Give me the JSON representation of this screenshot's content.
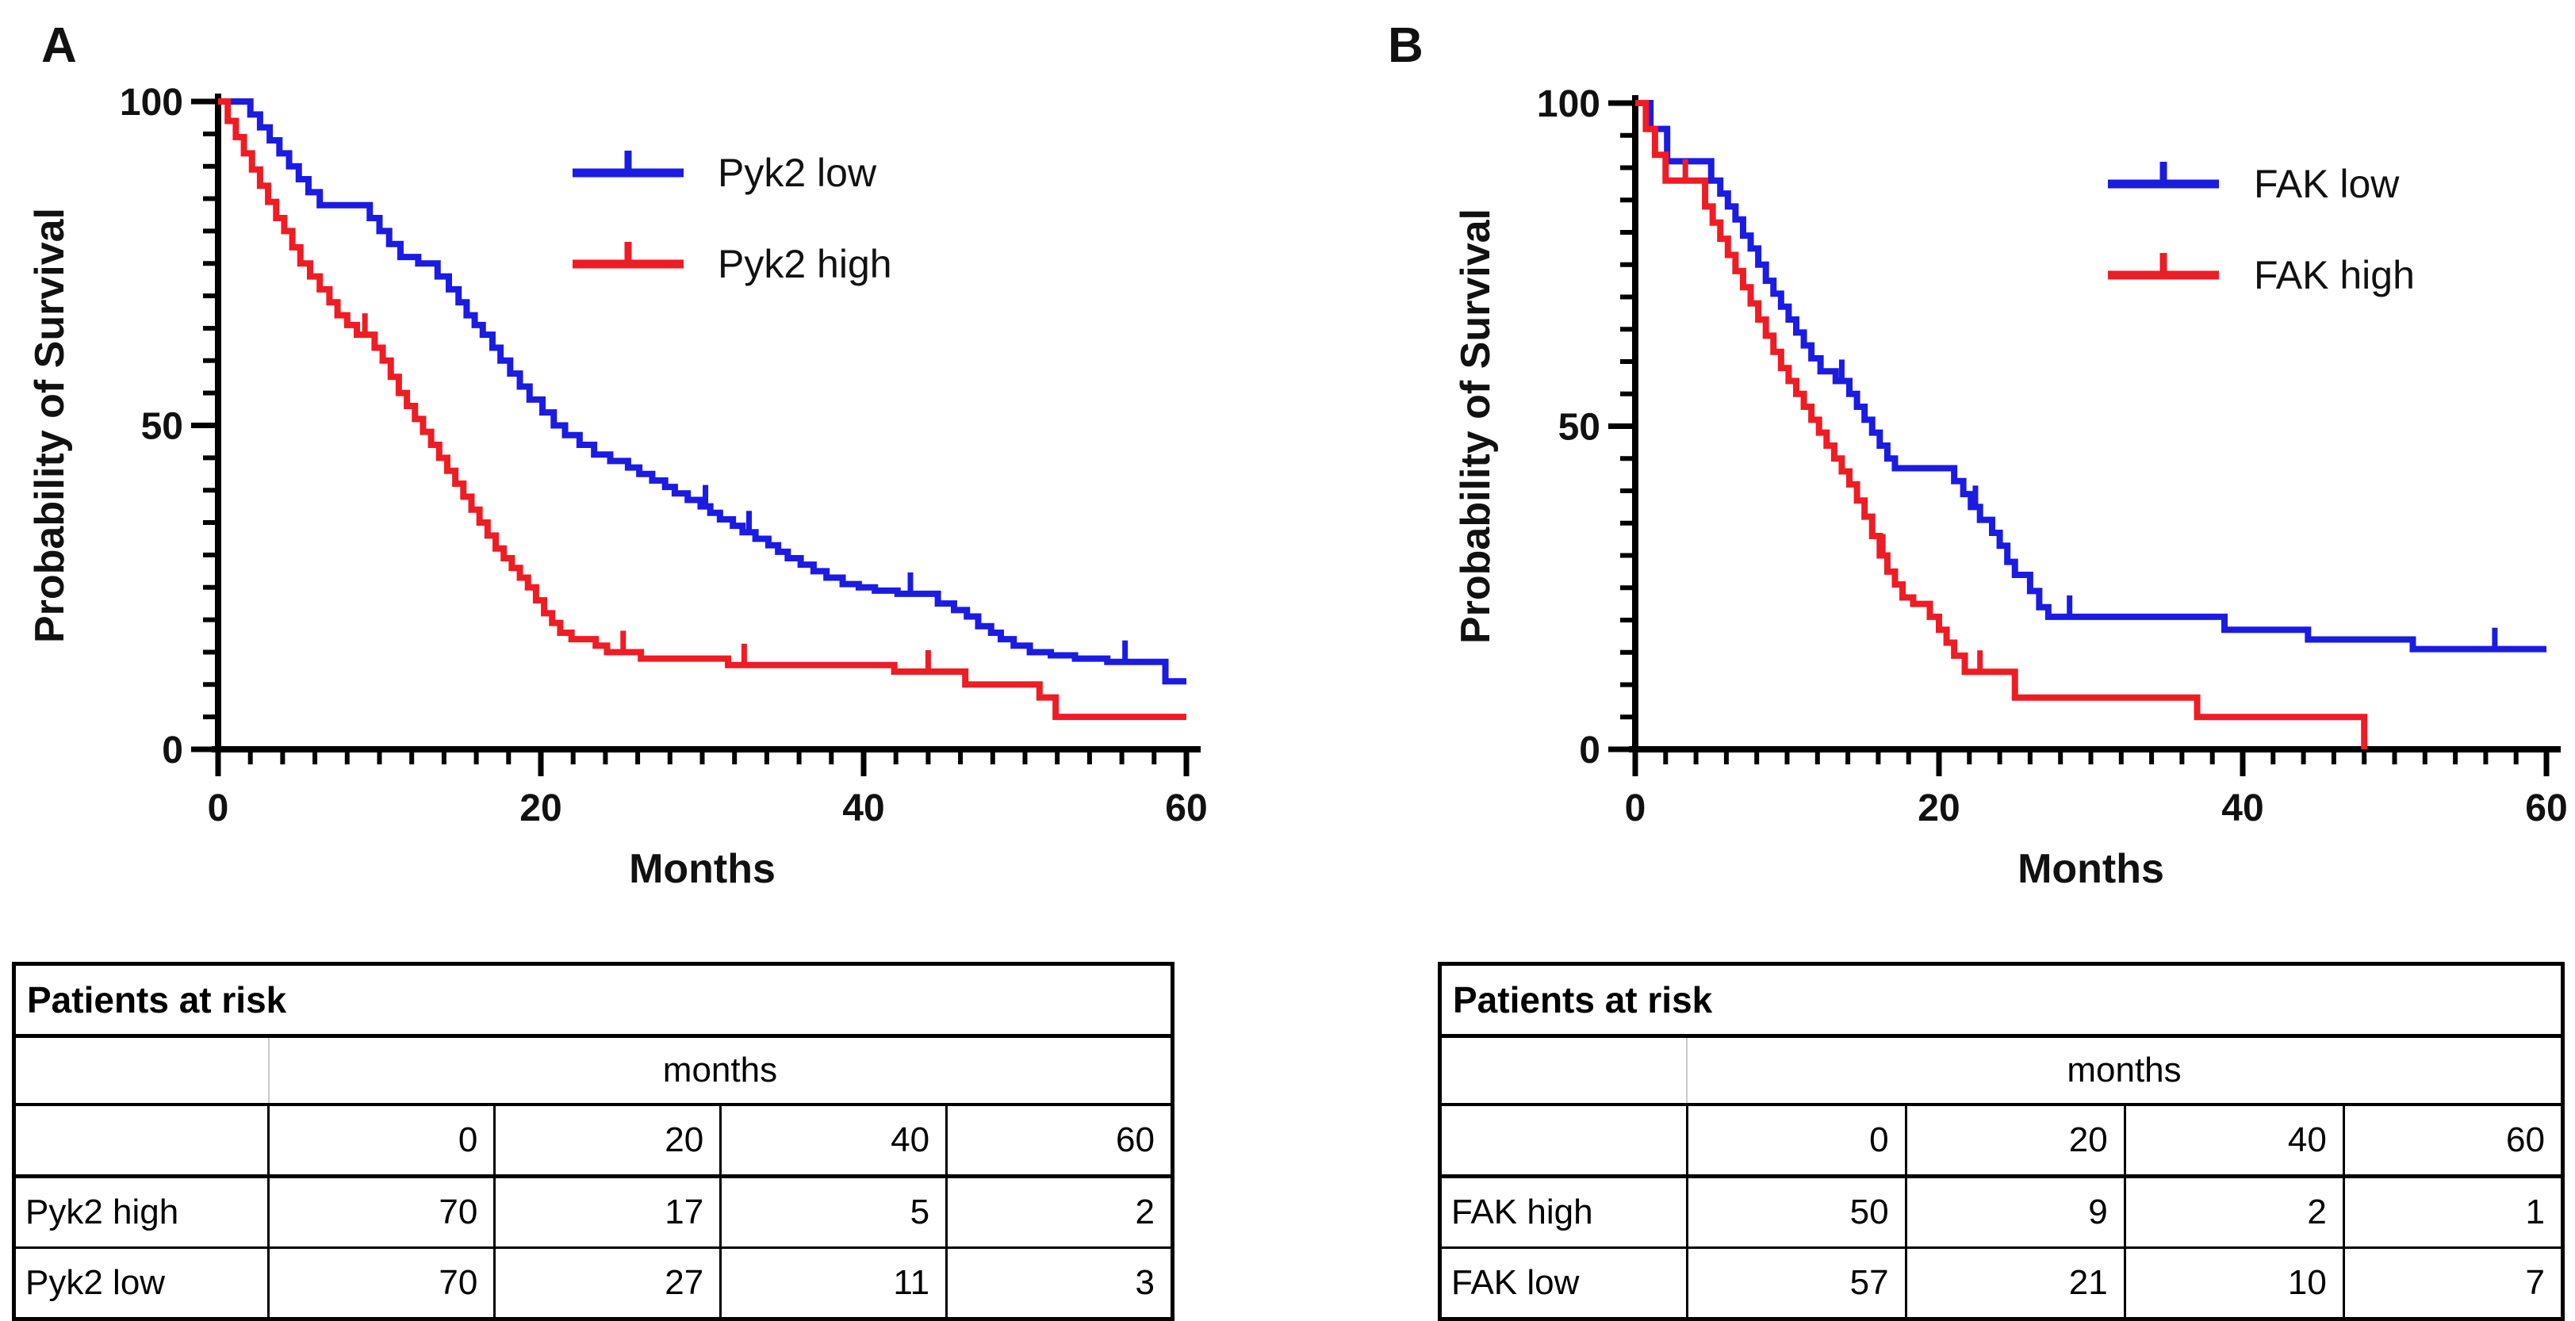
{
  "figure": {
    "panel_a_letter": "A",
    "panel_b_letter": "B"
  },
  "chart_data": [
    {
      "type": "line",
      "panel": "A",
      "title": "",
      "xlabel": "Months",
      "ylabel": "Probability of Survival",
      "xlim": [
        0,
        60
      ],
      "ylim": [
        0,
        100
      ],
      "x_ticks": [
        0,
        20,
        40,
        60
      ],
      "x_minor_step": 2,
      "y_ticks": [
        0,
        50,
        100
      ],
      "y_minor_step": 5,
      "grid": false,
      "legend_position": "inside-top-right",
      "series": [
        {
          "name": "Pyk2 low",
          "color": "#1b1be2",
          "points": [
            [
              0,
              100
            ],
            [
              2,
              98
            ],
            [
              2.6,
              96
            ],
            [
              3.2,
              94
            ],
            [
              3.8,
              92
            ],
            [
              4.4,
              90
            ],
            [
              5,
              88
            ],
            [
              5.6,
              86
            ],
            [
              6.3,
              84
            ],
            [
              9.4,
              82
            ],
            [
              10,
              80
            ],
            [
              10.6,
              78
            ],
            [
              11.3,
              76
            ],
            [
              12.4,
              75
            ],
            [
              13.6,
              73
            ],
            [
              14.3,
              71
            ],
            [
              14.9,
              69
            ],
            [
              15.4,
              67
            ],
            [
              15.9,
              65.5
            ],
            [
              16.4,
              64
            ],
            [
              17,
              62
            ],
            [
              17.5,
              60
            ],
            [
              18.1,
              58
            ],
            [
              18.7,
              56
            ],
            [
              19.3,
              54
            ],
            [
              20.1,
              52
            ],
            [
              20.8,
              50
            ],
            [
              21.5,
              48.5
            ],
            [
              22.4,
              47
            ],
            [
              23.3,
              45.5
            ],
            [
              24.3,
              44.5
            ],
            [
              25.4,
              43.5
            ],
            [
              26.1,
              42.5
            ],
            [
              26.9,
              41.5
            ],
            [
              27.7,
              40.5
            ],
            [
              28.3,
              39.5
            ],
            [
              29.1,
              38.5
            ],
            [
              29.9,
              37.5
            ],
            [
              30.5,
              36.5
            ],
            [
              31.1,
              35.5
            ],
            [
              31.9,
              34.5
            ],
            [
              32.5,
              33.5
            ],
            [
              33.3,
              32.5
            ],
            [
              34.1,
              31.5
            ],
            [
              34.7,
              30.5
            ],
            [
              35.3,
              29.5
            ],
            [
              36.1,
              28.5
            ],
            [
              36.9,
              27.5
            ],
            [
              37.7,
              26.5
            ],
            [
              38.7,
              25.5
            ],
            [
              39.7,
              25
            ],
            [
              40.7,
              24.5
            ],
            [
              42.1,
              24
            ],
            [
              44.6,
              22.5
            ],
            [
              45.6,
              21.5
            ],
            [
              46.4,
              20.5
            ],
            [
              47.1,
              19
            ],
            [
              47.9,
              18
            ],
            [
              48.5,
              17
            ],
            [
              49.3,
              16
            ],
            [
              50.3,
              15
            ],
            [
              51.6,
              14.5
            ],
            [
              53.1,
              14
            ],
            [
              55.1,
              13.5
            ],
            [
              58.7,
              10.5
            ],
            [
              60,
              10.5
            ]
          ],
          "censors": [
            [
              30.2,
              37.5
            ],
            [
              32.9,
              33.5
            ],
            [
              42.9,
              24
            ],
            [
              56.2,
              13.5
            ]
          ]
        },
        {
          "name": "Pyk2 high",
          "color": "#ee1c24",
          "points": [
            [
              0,
              100
            ],
            [
              0.6,
              97
            ],
            [
              1.1,
              94.5
            ],
            [
              1.6,
              92
            ],
            [
              2.1,
              89.5
            ],
            [
              2.6,
              87
            ],
            [
              3.1,
              84.5
            ],
            [
              3.6,
              82
            ],
            [
              4.1,
              80
            ],
            [
              4.6,
              77.5
            ],
            [
              5.1,
              75
            ],
            [
              5.7,
              73
            ],
            [
              6.3,
              71
            ],
            [
              6.9,
              69
            ],
            [
              7.4,
              67
            ],
            [
              8,
              65.5
            ],
            [
              8.6,
              64
            ],
            [
              9.7,
              62
            ],
            [
              10.2,
              60
            ],
            [
              10.7,
              57.5
            ],
            [
              11.2,
              55
            ],
            [
              11.7,
              53
            ],
            [
              12.2,
              51
            ],
            [
              12.7,
              49
            ],
            [
              13.2,
              47
            ],
            [
              13.7,
              45
            ],
            [
              14.2,
              43
            ],
            [
              14.7,
              41
            ],
            [
              15.2,
              39
            ],
            [
              15.7,
              37
            ],
            [
              16.2,
              35
            ],
            [
              16.7,
              33
            ],
            [
              17.2,
              31
            ],
            [
              17.7,
              29.5
            ],
            [
              18.2,
              28
            ],
            [
              18.7,
              26.5
            ],
            [
              19.2,
              25
            ],
            [
              19.7,
              23
            ],
            [
              20.2,
              21
            ],
            [
              20.7,
              19.5
            ],
            [
              21.2,
              18
            ],
            [
              21.9,
              17
            ],
            [
              23.4,
              16
            ],
            [
              24.1,
              15
            ],
            [
              26.2,
              14
            ],
            [
              31.6,
              13
            ],
            [
              41.9,
              12
            ],
            [
              46.3,
              10
            ],
            [
              50.9,
              8
            ],
            [
              51.9,
              5
            ],
            [
              60,
              5
            ]
          ],
          "censors": [
            [
              9.1,
              64
            ],
            [
              25.1,
              15
            ],
            [
              32.6,
              13
            ],
            [
              44,
              12
            ]
          ]
        }
      ]
    },
    {
      "type": "line",
      "panel": "B",
      "title": "",
      "xlabel": "Months",
      "ylabel": "Probability of Survival",
      "xlim": [
        0,
        60
      ],
      "ylim": [
        0,
        100
      ],
      "x_ticks": [
        0,
        20,
        40,
        60
      ],
      "x_minor_step": 2,
      "y_ticks": [
        0,
        50,
        100
      ],
      "y_minor_step": 5,
      "grid": false,
      "legend_position": "inside-top-right",
      "series": [
        {
          "name": "FAK low",
          "color": "#1b1be2",
          "points": [
            [
              0,
              100
            ],
            [
              1,
              96
            ],
            [
              2.1,
              91
            ],
            [
              5,
              88
            ],
            [
              5.6,
              86
            ],
            [
              6.1,
              84
            ],
            [
              6.6,
              82
            ],
            [
              7.1,
              79.5
            ],
            [
              7.6,
              77.5
            ],
            [
              8.1,
              75
            ],
            [
              8.6,
              72.5
            ],
            [
              9.1,
              70.5
            ],
            [
              9.6,
              68.5
            ],
            [
              10.1,
              66.5
            ],
            [
              10.6,
              64.5
            ],
            [
              11.1,
              62.5
            ],
            [
              11.6,
              60.5
            ],
            [
              12.2,
              58.5
            ],
            [
              13.2,
              57
            ],
            [
              14.1,
              55
            ],
            [
              14.6,
              53
            ],
            [
              15.1,
              51
            ],
            [
              15.6,
              49
            ],
            [
              16.1,
              47
            ],
            [
              16.6,
              45
            ],
            [
              17.1,
              43.5
            ],
            [
              21,
              41.5
            ],
            [
              21.6,
              39.5
            ],
            [
              22.1,
              37.5
            ],
            [
              22.7,
              35.5
            ],
            [
              23.5,
              33.5
            ],
            [
              24,
              31.5
            ],
            [
              24.5,
              29
            ],
            [
              25,
              27
            ],
            [
              26,
              24.5
            ],
            [
              26.6,
              22
            ],
            [
              27.2,
              20.5
            ],
            [
              38.8,
              18.5
            ],
            [
              44.3,
              17
            ],
            [
              51.2,
              15.5
            ],
            [
              60,
              15.5
            ]
          ],
          "censors": [
            [
              13.6,
              57
            ],
            [
              22.4,
              37.5
            ],
            [
              28.6,
              20.5
            ],
            [
              56.6,
              15.5
            ]
          ]
        },
        {
          "name": "FAK high",
          "color": "#ee1c24",
          "points": [
            [
              0,
              100
            ],
            [
              0.7,
              96
            ],
            [
              1.3,
              92
            ],
            [
              2,
              88
            ],
            [
              4.6,
              84
            ],
            [
              5.1,
              81.5
            ],
            [
              5.6,
              79
            ],
            [
              6.1,
              76.5
            ],
            [
              6.6,
              74
            ],
            [
              7.1,
              71.5
            ],
            [
              7.6,
              69
            ],
            [
              8.1,
              66.5
            ],
            [
              8.6,
              64
            ],
            [
              9.1,
              61.5
            ],
            [
              9.6,
              59
            ],
            [
              10.1,
              57
            ],
            [
              10.6,
              55
            ],
            [
              11.1,
              53
            ],
            [
              11.6,
              51
            ],
            [
              12.1,
              49
            ],
            [
              12.6,
              47
            ],
            [
              13.1,
              45
            ],
            [
              13.6,
              43
            ],
            [
              14.1,
              41
            ],
            [
              14.6,
              38.5
            ],
            [
              15.1,
              36
            ],
            [
              15.6,
              33
            ],
            [
              16.1,
              30
            ],
            [
              16.6,
              27.5
            ],
            [
              17.1,
              25.5
            ],
            [
              17.6,
              23.5
            ],
            [
              18.3,
              22.5
            ],
            [
              19.4,
              20.5
            ],
            [
              20,
              18.5
            ],
            [
              20.5,
              16.5
            ],
            [
              21,
              14.5
            ],
            [
              21.7,
              12
            ],
            [
              25,
              8
            ],
            [
              37,
              5
            ],
            [
              48,
              0
            ]
          ],
          "censors": [
            [
              3.3,
              88
            ],
            [
              16.3,
              30
            ],
            [
              22.7,
              12
            ]
          ]
        }
      ]
    }
  ],
  "tables": [
    {
      "title": "Patients at risk",
      "group_header": "months",
      "col_headers": [
        "0",
        "20",
        "40",
        "60"
      ],
      "rows": [
        {
          "label": "Pyk2 high",
          "values": [
            "70",
            "17",
            "5",
            "2"
          ]
        },
        {
          "label": "Pyk2 low",
          "values": [
            "70",
            "27",
            "11",
            "3"
          ]
        }
      ]
    },
    {
      "title": "Patients at risk",
      "group_header": "months",
      "col_headers": [
        "0",
        "20",
        "40",
        "60"
      ],
      "rows": [
        {
          "label": "FAK high",
          "values": [
            "50",
            "9",
            "2",
            "1"
          ]
        },
        {
          "label": "FAK low",
          "values": [
            "57",
            "21",
            "10",
            "7"
          ]
        }
      ]
    }
  ]
}
